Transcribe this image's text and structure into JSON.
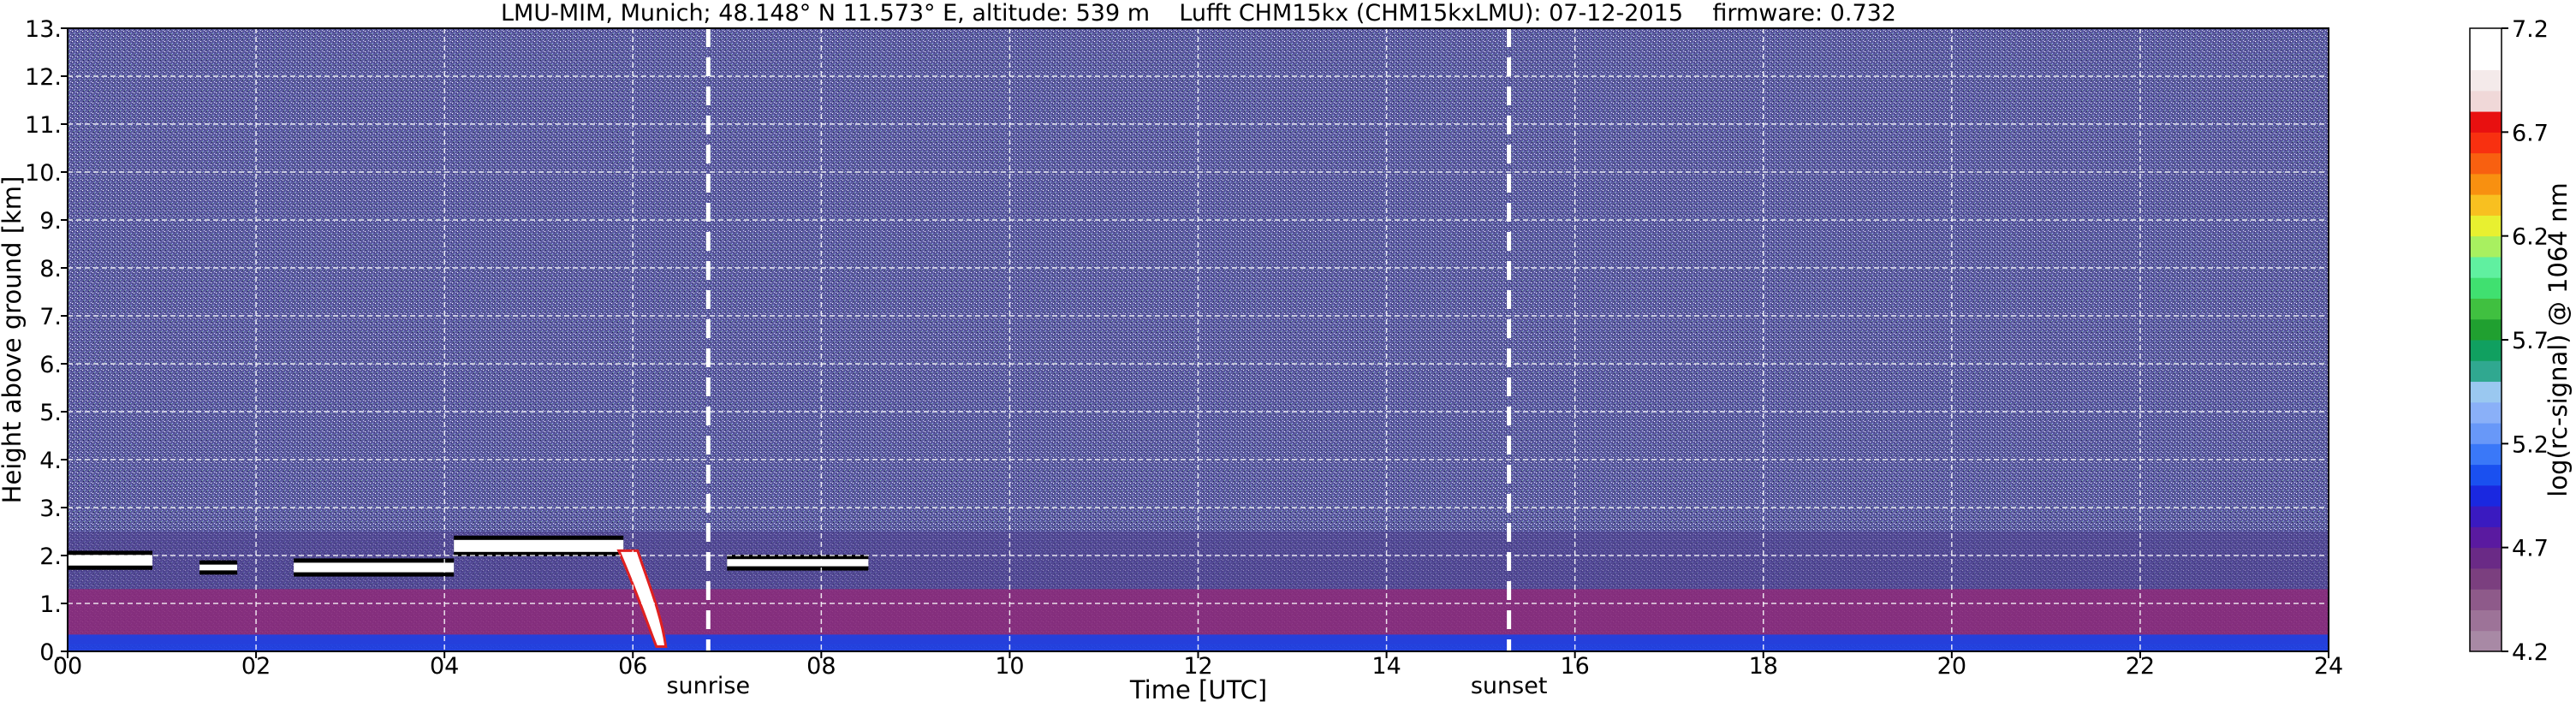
{
  "chart_data": {
    "type": "heatmap",
    "title": "LMU-MIM, Munich; 48.148° N 11.573° E, altitude: 539 m    Lufft CHM15kx (CHM15kxLMU): 07-12-2015    firmware: 0.732",
    "xlabel": "Time [UTC]",
    "ylabel": "Height above ground [km]",
    "xlim": [
      0,
      24
    ],
    "ylim": [
      0,
      13
    ],
    "x_ticks": [
      "00",
      "02",
      "04",
      "06",
      "08",
      "10",
      "12",
      "14",
      "16",
      "18",
      "20",
      "22",
      "24"
    ],
    "y_ticks": [
      "0.",
      "1.",
      "2.",
      "3.",
      "4.",
      "5.",
      "6.",
      "7.",
      "8.",
      "9.",
      "10.",
      "11.",
      "12.",
      "13."
    ],
    "grid": true,
    "markers": [
      {
        "label": "sunrise",
        "x": 6.8
      },
      {
        "label": "sunset",
        "x": 15.3
      }
    ],
    "colorbar": {
      "label": "log(rc-signal) @ 1064 nm",
      "range": [
        4.2,
        7.2
      ],
      "ticks": [
        "4.2",
        "4.7",
        "5.2",
        "5.7",
        "6.2",
        "6.7",
        "7.2"
      ],
      "colors": [
        "#a889a5",
        "#9d7398",
        "#8e5a8a",
        "#7b3f7f",
        "#6a2a86",
        "#5a1aa0",
        "#3a1ac0",
        "#1a28e0",
        "#1a50f0",
        "#3a78f8",
        "#6898f8",
        "#8ab0f8",
        "#9ac8f0",
        "#30a890",
        "#10a060",
        "#20a030",
        "#40c040",
        "#40e070",
        "#60f0a0",
        "#a8f060",
        "#e8f030",
        "#f8c020",
        "#f89010",
        "#f86010",
        "#f83010",
        "#e81010",
        "#f0d8d8",
        "#f4eaea",
        "#ffffff",
        "#ffffff"
      ]
    },
    "layers": [
      {
        "name": "noise",
        "y_from": 2.5,
        "y_to": 13,
        "color": "#5c5ba0"
      },
      {
        "name": "boundary-layer",
        "y_from": 0.15,
        "y_to": 1.3,
        "color": "#8a2a7a"
      },
      {
        "name": "near-surface",
        "y_from": 0,
        "y_to": 0.35,
        "color": "#2040e0"
      }
    ],
    "cloud_layer": [
      {
        "x0": 0.0,
        "x1": 0.9,
        "y": 1.9,
        "thick": 0.22
      },
      {
        "x0": 1.4,
        "x1": 1.8,
        "y": 1.75,
        "thick": 0.12
      },
      {
        "x0": 2.4,
        "x1": 4.1,
        "y": 1.75,
        "thick": 0.2
      },
      {
        "x0": 4.1,
        "x1": 5.9,
        "y": 2.2,
        "thick": 0.25
      },
      {
        "x0": 7.0,
        "x1": 8.5,
        "y": 1.85,
        "thick": 0.15
      }
    ]
  }
}
